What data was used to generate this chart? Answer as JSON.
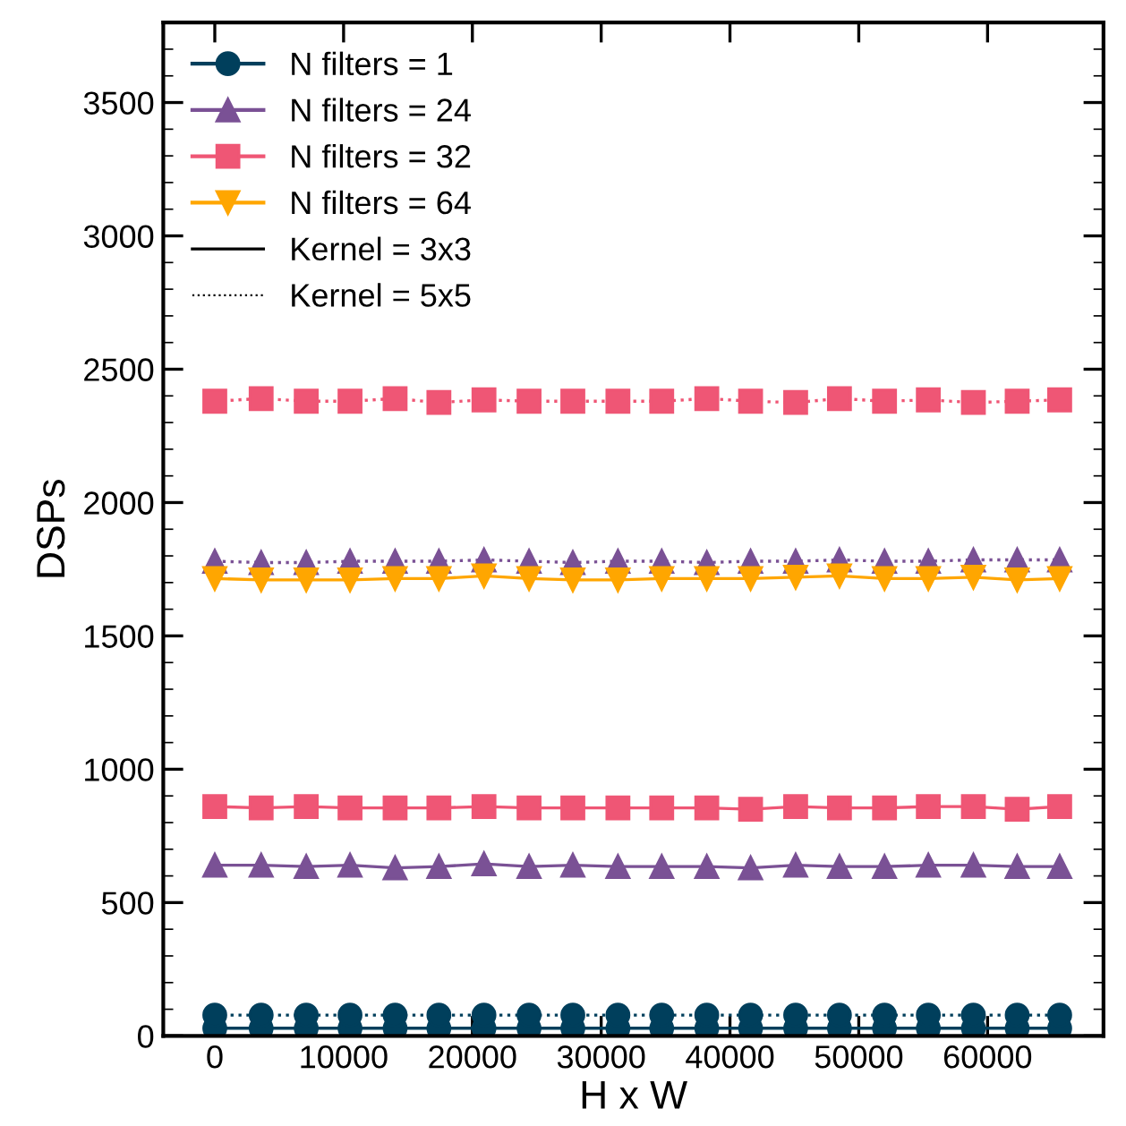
{
  "chart_data": {
    "type": "line",
    "xlabel": "H x W",
    "ylabel": "DSPs",
    "x": [
      0,
      3600,
      7100,
      10500,
      14000,
      17400,
      20900,
      24400,
      27800,
      31300,
      34700,
      38200,
      41600,
      45100,
      48500,
      52000,
      55400,
      58900,
      62300,
      65600
    ],
    "xlim": [
      -4000,
      69000
    ],
    "xticks": [
      0,
      10000,
      20000,
      30000,
      40000,
      50000,
      60000
    ],
    "ylim": [
      0,
      3800
    ],
    "yticks": [
      0,
      500,
      1000,
      1500,
      2000,
      2500,
      3000,
      3500
    ],
    "grid": false,
    "legend": "top left",
    "series": [
      {
        "name": "N filters = 1",
        "color": "#003f5c",
        "marker": "circle",
        "line_style": "solid",
        "values": [
          29,
          29,
          29,
          29,
          29,
          29,
          29,
          29,
          29,
          29,
          29,
          29,
          29,
          29,
          29,
          29,
          29,
          29,
          29,
          29
        ]
      },
      {
        "color": "#003f5c",
        "marker": "circle",
        "line_style": "dotted",
        "values": [
          78,
          78,
          78,
          78,
          78,
          78,
          78,
          78,
          78,
          78,
          78,
          78,
          78,
          78,
          78,
          78,
          78,
          78,
          78,
          78
        ]
      },
      {
        "name": "N filters = 24",
        "color": "#7a5195",
        "marker": "triangle",
        "line_style": "solid",
        "values": [
          640,
          640,
          635,
          640,
          630,
          635,
          645,
          635,
          640,
          635,
          635,
          635,
          630,
          640,
          635,
          635,
          640,
          640,
          635,
          635
        ]
      },
      {
        "color": "#7a5195",
        "marker": "triangle",
        "line_style": "dotted",
        "values": [
          1780,
          1775,
          1775,
          1780,
          1780,
          1780,
          1785,
          1780,
          1775,
          1780,
          1780,
          1775,
          1780,
          1780,
          1785,
          1780,
          1780,
          1785,
          1785,
          1785
        ]
      },
      {
        "name": "N filters = 32",
        "color": "#ef5675",
        "marker": "square",
        "line_style": "solid",
        "values": [
          860,
          855,
          860,
          855,
          855,
          855,
          860,
          855,
          855,
          855,
          855,
          855,
          850,
          860,
          855,
          855,
          860,
          860,
          850,
          860
        ]
      },
      {
        "color": "#ef5675",
        "marker": "square",
        "line_style": "dotted",
        "values": [
          2380,
          2390,
          2380,
          2380,
          2390,
          2375,
          2385,
          2380,
          2380,
          2380,
          2380,
          2390,
          2380,
          2375,
          2390,
          2380,
          2385,
          2375,
          2380,
          2385
        ]
      },
      {
        "name": "N filters = 64",
        "color": "#ffa600",
        "marker": "triangle_down",
        "line_style": "solid",
        "values": [
          1715,
          1710,
          1710,
          1710,
          1715,
          1715,
          1725,
          1715,
          1710,
          1710,
          1715,
          1715,
          1715,
          1720,
          1725,
          1715,
          1715,
          1720,
          1710,
          1715
        ]
      }
    ],
    "annotations": [
      "Kernel = 3x3",
      "Kernel = 5x5"
    ]
  }
}
